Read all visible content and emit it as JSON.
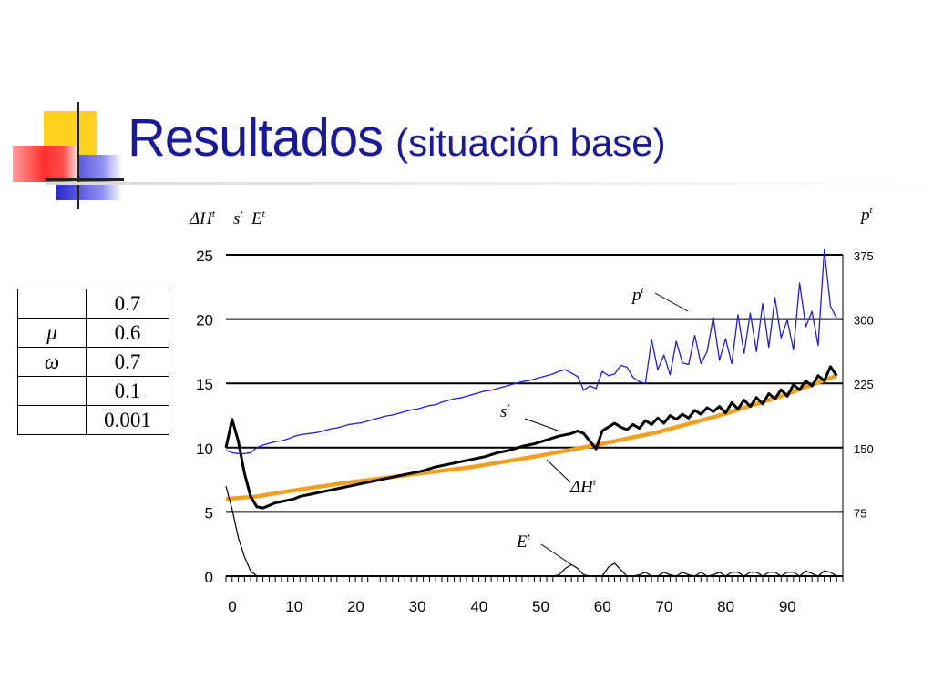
{
  "slide": {
    "title": "Resultados",
    "subtitle": "(situación base)"
  },
  "parameters": [
    {
      "symbol": "",
      "value": "0.7"
    },
    {
      "symbol": "μ",
      "value": "0.6"
    },
    {
      "symbol": "ω",
      "value": "0.7"
    },
    {
      "symbol": "",
      "value": "0.1"
    },
    {
      "symbol": "",
      "value": "0.001"
    }
  ],
  "colors": {
    "title": "#1a1a99",
    "p_series": "#1f1fcc",
    "H_series": "#f0a020",
    "s_series": "#000000",
    "E_series": "#000000",
    "deco_yellow": "#ffd21f",
    "deco_blue": "#3333cc",
    "deco_red": "#ff3333"
  },
  "chart_data": {
    "type": "line",
    "x": {
      "ticks": [
        "0",
        "10",
        "20",
        "30",
        "40",
        "50",
        "60",
        "70",
        "80",
        "90"
      ],
      "range": [
        0,
        100
      ]
    },
    "y_left": {
      "label_H": "ΔH",
      "label_s": "s",
      "label_E": "E",
      "sup": "t",
      "ticks": [
        "0",
        "5",
        "10",
        "15",
        "20",
        "25"
      ],
      "range": [
        0,
        25
      ]
    },
    "y_right": {
      "label": "p",
      "sup": "t",
      "ticks": [
        "75",
        "150",
        "225",
        "300",
        "375"
      ],
      "range": [
        0,
        375
      ]
    },
    "grid": true,
    "annotations": {
      "p": {
        "label": "p",
        "sup": "t"
      },
      "s": {
        "label": "s",
        "sup": "t"
      },
      "H": {
        "label": "ΔH",
        "sup": "t"
      },
      "E": {
        "label": "E",
        "sup": "t"
      }
    },
    "series": [
      {
        "key": "p",
        "axis": "right",
        "x": [
          0,
          1,
          2,
          3,
          4,
          5,
          6,
          7,
          8,
          9,
          10,
          11,
          12,
          13,
          14,
          15,
          16,
          17,
          18,
          19,
          20,
          21,
          22,
          23,
          24,
          25,
          26,
          27,
          28,
          29,
          30,
          31,
          32,
          33,
          34,
          35,
          36,
          37,
          38,
          39,
          40,
          41,
          42,
          43,
          44,
          45,
          46,
          47,
          48,
          49,
          50,
          51,
          52,
          53,
          54,
          55,
          56,
          57,
          58,
          59,
          60,
          61,
          62,
          63,
          64,
          65,
          66,
          67,
          68,
          69,
          70,
          71,
          72,
          73,
          74,
          75,
          76,
          77,
          78,
          79,
          80,
          81,
          82,
          83,
          84,
          85,
          86,
          87,
          88,
          89,
          90,
          91,
          92,
          93,
          94,
          95,
          96,
          97,
          98,
          99
        ],
        "values": [
          147,
          144,
          143,
          143,
          144,
          150,
          153,
          155,
          157,
          158,
          160,
          163,
          165,
          166,
          167,
          168,
          170,
          172,
          173,
          175,
          177,
          178,
          179,
          181,
          183,
          185,
          187,
          188,
          190,
          192,
          194,
          195,
          197,
          199,
          200,
          203,
          205,
          207,
          208,
          210,
          212,
          214,
          216,
          217,
          219,
          221,
          223,
          225,
          227,
          228,
          230,
          232,
          234,
          236,
          239,
          241,
          237,
          233,
          217,
          222,
          219,
          239,
          234,
          236,
          246,
          244,
          232,
          227,
          225,
          276,
          241,
          258,
          235,
          274,
          249,
          247,
          281,
          248,
          262,
          302,
          252,
          277,
          248,
          305,
          260,
          307,
          262,
          318,
          267,
          325,
          278,
          299,
          264,
          342,
          291,
          309,
          269,
          381,
          315,
          301
        ],
        "replace_tail": true
      },
      {
        "key": "H",
        "axis": "left",
        "x": [
          0,
          5,
          10,
          20,
          30,
          40,
          50,
          60,
          70,
          80,
          90,
          99
        ],
        "values": [
          6.0,
          6.2,
          6.6,
          7.3,
          7.9,
          8.5,
          9.3,
          10.2,
          11.2,
          12.5,
          14.0,
          15.6
        ]
      },
      {
        "key": "s",
        "axis": "left",
        "x": [
          0,
          1,
          2,
          3,
          4,
          5,
          6,
          7,
          8,
          9,
          10,
          11,
          12,
          14,
          16,
          18,
          20,
          22,
          24,
          26,
          28,
          30,
          32,
          34,
          36,
          38,
          40,
          42,
          44,
          46,
          48,
          50,
          52,
          54,
          55,
          56,
          57,
          58,
          59,
          60,
          61,
          62,
          63,
          64,
          65,
          66,
          67,
          68,
          69,
          70,
          71,
          72,
          73,
          74,
          75,
          76,
          77,
          78,
          79,
          80,
          81,
          82,
          83,
          84,
          85,
          86,
          87,
          88,
          89,
          90,
          91,
          92,
          93,
          94,
          95,
          96,
          97,
          98,
          99
        ],
        "values": [
          10.0,
          12.2,
          10.5,
          8.0,
          6.2,
          5.4,
          5.3,
          5.5,
          5.7,
          5.8,
          5.9,
          6.0,
          6.2,
          6.4,
          6.6,
          6.8,
          7.0,
          7.2,
          7.4,
          7.6,
          7.8,
          8.0,
          8.2,
          8.5,
          8.7,
          8.9,
          9.1,
          9.3,
          9.6,
          9.8,
          10.1,
          10.3,
          10.6,
          10.9,
          11.0,
          11.1,
          11.3,
          11.1,
          10.5,
          9.9,
          11.3,
          11.6,
          11.9,
          11.6,
          11.4,
          11.8,
          11.5,
          12.1,
          11.8,
          12.3,
          11.9,
          12.5,
          12.2,
          12.6,
          12.3,
          12.9,
          12.6,
          13.1,
          12.8,
          13.2,
          12.7,
          13.5,
          13.0,
          13.7,
          13.2,
          13.9,
          13.4,
          14.2,
          13.8,
          14.5,
          14.0,
          14.9,
          14.5,
          15.2,
          14.8,
          15.6,
          15.2,
          16.3,
          15.6
        ],
        "replace_tail": false
      },
      {
        "key": "E",
        "axis": "left",
        "x": [
          0,
          1,
          2,
          3,
          4,
          5,
          6,
          7,
          8,
          9,
          10,
          11,
          12,
          13,
          14,
          15,
          16,
          17,
          18,
          19,
          20,
          50,
          51,
          52,
          53,
          54,
          55,
          56,
          57,
          58,
          59,
          60,
          61,
          62,
          63,
          64,
          65,
          66,
          67,
          68,
          69,
          70,
          71,
          72,
          73,
          74,
          75,
          76,
          77,
          78,
          79,
          80,
          81,
          82,
          83,
          84,
          85,
          86,
          87,
          88,
          89,
          90,
          91,
          92,
          93,
          94,
          95,
          96,
          97,
          98,
          99
        ],
        "values": [
          7.0,
          5.2,
          3.0,
          1.5,
          0.4,
          0.0,
          0.0,
          0.0,
          0.0,
          0.0,
          0.0,
          0.0,
          0.0,
          0.0,
          0.0,
          0.0,
          0.0,
          0.0,
          0.0,
          0.0,
          0.0,
          0.0,
          0.0,
          0.0,
          0.0,
          0.1,
          0.6,
          0.9,
          0.6,
          0.1,
          0.0,
          0.0,
          0.0,
          0.7,
          1.0,
          0.5,
          0.0,
          0.0,
          0.1,
          0.3,
          0.0,
          0.0,
          0.3,
          0.1,
          0.0,
          0.3,
          0.1,
          0.0,
          0.3,
          0.0,
          0.1,
          0.3,
          0.0,
          0.3,
          0.3,
          0.0,
          0.3,
          0.3,
          0.0,
          0.3,
          0.3,
          0.0,
          0.3,
          0.3,
          0.0,
          0.4,
          0.2,
          0.0,
          0.4,
          0.3,
          0.0
        ]
      }
    ]
  }
}
